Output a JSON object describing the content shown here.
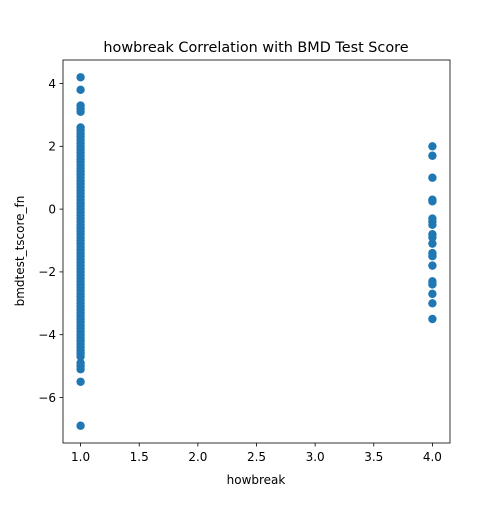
{
  "chart_data": {
    "type": "scatter",
    "title": "howbreak Correlation with BMD Test Score",
    "xlabel": "howbreak",
    "ylabel": "bmdtest_tscore_fn",
    "xlim": [
      0.85,
      4.15
    ],
    "ylim": [
      -7.45,
      4.75
    ],
    "x_ticks": [
      1.0,
      1.5,
      2.0,
      2.5,
      3.0,
      3.5,
      4.0
    ],
    "x_tick_labels": [
      "1.0",
      "1.5",
      "2.0",
      "2.5",
      "3.0",
      "3.5",
      "4.0"
    ],
    "y_ticks": [
      -6,
      -4,
      -2,
      0,
      2,
      4
    ],
    "y_tick_labels": [
      "−6",
      "−4",
      "−2",
      "0",
      "2",
      "4"
    ],
    "grid": false,
    "marker_color": "#1f77b4",
    "series": [
      {
        "points": [
          [
            1,
            4.2
          ],
          [
            1,
            3.8
          ],
          [
            1,
            3.3
          ],
          [
            1,
            3.2
          ],
          [
            1,
            3.1
          ],
          [
            1,
            2.6
          ],
          [
            1,
            2.5
          ],
          [
            1,
            2.4
          ],
          [
            1,
            2.3
          ],
          [
            1,
            2.2
          ],
          [
            1,
            2.1
          ],
          [
            1,
            2.0
          ],
          [
            1,
            1.9
          ],
          [
            1,
            1.8
          ],
          [
            1,
            1.7
          ],
          [
            1,
            1.6
          ],
          [
            1,
            1.5
          ],
          [
            1,
            1.4
          ],
          [
            1,
            1.3
          ],
          [
            1,
            1.2
          ],
          [
            1,
            1.1
          ],
          [
            1,
            1.0
          ],
          [
            1,
            0.9
          ],
          [
            1,
            0.8
          ],
          [
            1,
            0.7
          ],
          [
            1,
            0.6
          ],
          [
            1,
            0.5
          ],
          [
            1,
            0.4
          ],
          [
            1,
            0.3
          ],
          [
            1,
            0.2
          ],
          [
            1,
            0.1
          ],
          [
            1,
            0.0
          ],
          [
            1,
            -0.1
          ],
          [
            1,
            -0.2
          ],
          [
            1,
            -0.3
          ],
          [
            1,
            -0.4
          ],
          [
            1,
            -0.5
          ],
          [
            1,
            -0.6
          ],
          [
            1,
            -0.7
          ],
          [
            1,
            -0.8
          ],
          [
            1,
            -0.9
          ],
          [
            1,
            -1.0
          ],
          [
            1,
            -1.1
          ],
          [
            1,
            -1.2
          ],
          [
            1,
            -1.3
          ],
          [
            1,
            -1.4
          ],
          [
            1,
            -1.5
          ],
          [
            1,
            -1.6
          ],
          [
            1,
            -1.7
          ],
          [
            1,
            -1.8
          ],
          [
            1,
            -1.9
          ],
          [
            1,
            -2.0
          ],
          [
            1,
            -2.1
          ],
          [
            1,
            -2.2
          ],
          [
            1,
            -2.3
          ],
          [
            1,
            -2.4
          ],
          [
            1,
            -2.5
          ],
          [
            1,
            -2.6
          ],
          [
            1,
            -2.7
          ],
          [
            1,
            -2.8
          ],
          [
            1,
            -2.9
          ],
          [
            1,
            -3.0
          ],
          [
            1,
            -3.1
          ],
          [
            1,
            -3.2
          ],
          [
            1,
            -3.3
          ],
          [
            1,
            -3.4
          ],
          [
            1,
            -3.5
          ],
          [
            1,
            -3.6
          ],
          [
            1,
            -3.7
          ],
          [
            1,
            -3.8
          ],
          [
            1,
            -3.9
          ],
          [
            1,
            -4.0
          ],
          [
            1,
            -4.1
          ],
          [
            1,
            -4.2
          ],
          [
            1,
            -4.3
          ],
          [
            1,
            -4.4
          ],
          [
            1,
            -4.5
          ],
          [
            1,
            -4.6
          ],
          [
            1,
            -4.7
          ],
          [
            1,
            -4.9
          ],
          [
            1,
            -5.0
          ],
          [
            1,
            -5.1
          ],
          [
            1,
            -5.5
          ],
          [
            1,
            -6.9
          ],
          [
            4,
            2.0
          ],
          [
            4,
            1.7
          ],
          [
            4,
            1.0
          ],
          [
            4,
            0.3
          ],
          [
            4,
            0.25
          ],
          [
            4,
            -0.3
          ],
          [
            4,
            -0.4
          ],
          [
            4,
            -0.5
          ],
          [
            4,
            -0.8
          ],
          [
            4,
            -0.9
          ],
          [
            4,
            -1.1
          ],
          [
            4,
            -1.4
          ],
          [
            4,
            -1.5
          ],
          [
            4,
            -1.8
          ],
          [
            4,
            -2.3
          ],
          [
            4,
            -2.4
          ],
          [
            4,
            -2.7
          ],
          [
            4,
            -3.0
          ],
          [
            4,
            -3.5
          ]
        ]
      }
    ]
  }
}
